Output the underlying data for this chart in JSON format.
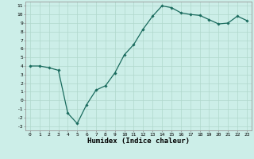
{
  "x": [
    0,
    1,
    2,
    3,
    4,
    5,
    6,
    7,
    8,
    9,
    10,
    11,
    12,
    13,
    14,
    15,
    16,
    17,
    18,
    19,
    20,
    21,
    22,
    23
  ],
  "y": [
    4.0,
    4.0,
    3.8,
    3.5,
    -1.5,
    -2.7,
    -0.5,
    1.2,
    1.7,
    3.2,
    5.3,
    6.5,
    8.3,
    9.8,
    11.0,
    10.8,
    10.2,
    10.0,
    9.9,
    9.4,
    8.9,
    9.0,
    9.8,
    9.3
  ],
  "line_color": "#1a6b5e",
  "marker": "D",
  "marker_size": 1.8,
  "line_width": 0.9,
  "xlabel": "Humidex (Indice chaleur)",
  "xlim": [
    -0.5,
    23.5
  ],
  "ylim": [
    -3.5,
    11.5
  ],
  "yticks": [
    -3,
    -2,
    -1,
    0,
    1,
    2,
    3,
    4,
    5,
    6,
    7,
    8,
    9,
    10,
    11
  ],
  "xticks": [
    0,
    1,
    2,
    3,
    4,
    5,
    6,
    7,
    8,
    9,
    10,
    11,
    12,
    13,
    14,
    15,
    16,
    17,
    18,
    19,
    20,
    21,
    22,
    23
  ],
  "background_color": "#cceee8",
  "grid_color": "#b0d8cc",
  "tick_fontsize": 4.5,
  "xlabel_fontsize": 6.5
}
